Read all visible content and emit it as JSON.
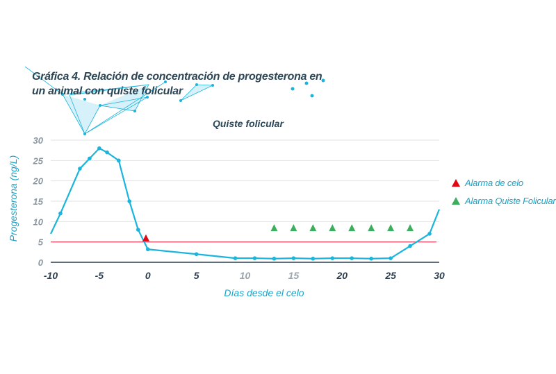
{
  "title": "Gráfica 4. Relación de concentración de progesterona en un animal con quiste folicular",
  "title_lines": [
    "Gráfica 4. Relación de concentración de progesterona en",
    "un animal con quiste folicular"
  ],
  "colors": {
    "line": "#1ab4dc",
    "threshold": "#e8506a",
    "alarm_celo": "#e30613",
    "alarm_quiste": "#3dae5d",
    "axis_text": "#3a4a5a",
    "label_text": "#1aa3c8",
    "grid": "#e2e2e2"
  },
  "chart_data": {
    "type": "line",
    "title": "Quiste folicular",
    "xlabel": "Días desde el celo",
    "ylabel": "Progesterona (ng/L)",
    "xlim": [
      -10,
      30
    ],
    "ylim": [
      0,
      30
    ],
    "xticks": [
      -10,
      -5,
      0,
      5,
      10,
      15,
      20,
      25,
      30
    ],
    "yticks": [
      0,
      5,
      10,
      15,
      20,
      25,
      30
    ],
    "grid": "horizontal",
    "legend_position": "right",
    "series": [
      {
        "x": [
          -10,
          -9,
          -7,
          -6,
          -5,
          -4.2,
          -3,
          -1.9,
          -1,
          0,
          5,
          9,
          11,
          13,
          15,
          17,
          19,
          21,
          23,
          25,
          27,
          29,
          30
        ],
        "y": [
          7,
          12,
          23,
          25.5,
          28,
          27,
          25,
          15,
          8,
          3.2,
          2,
          1,
          1,
          0.9,
          1,
          0.9,
          1,
          1,
          0.9,
          1,
          4,
          7,
          13
        ]
      }
    ],
    "threshold": {
      "y": 5
    },
    "legend": [
      {
        "label": "Alarma de celo",
        "marker": "triangle",
        "color": "#e30613"
      },
      {
        "label": "Alarma Quiste Folicular",
        "marker": "triangle",
        "color": "#3dae5d"
      }
    ],
    "markers": {
      "alarma_celo": {
        "x": [
          -0.2
        ],
        "y": [
          6
        ]
      },
      "alarma_quiste": {
        "x": [
          13,
          15,
          17,
          19,
          21,
          23,
          25,
          27
        ],
        "y": [
          8.5,
          8.5,
          8.5,
          8.5,
          8.5,
          8.5,
          8.5,
          8.5
        ]
      }
    }
  }
}
